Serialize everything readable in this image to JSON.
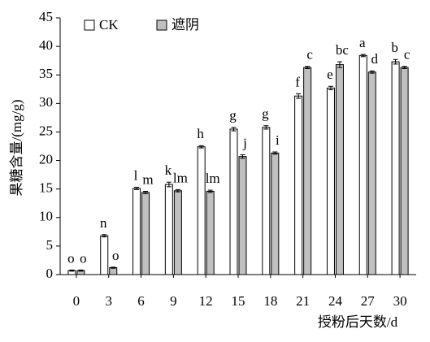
{
  "chart_data": {
    "type": "bar",
    "x_label": "授粉后天数/d",
    "y_label": "果糖含量/(mg/g)",
    "categories": [
      "0",
      "3",
      "6",
      "9",
      "12",
      "15",
      "18",
      "21",
      "24",
      "27",
      "30"
    ],
    "series": [
      {
        "name": "CK",
        "color": "#ffffff",
        "values": [
          0.7,
          6.8,
          15.1,
          15.8,
          22.4,
          25.5,
          25.8,
          31.3,
          32.7,
          38.4,
          37.3
        ],
        "errors": [
          0.1,
          0.2,
          0.2,
          0.4,
          0.2,
          0.3,
          0.3,
          0.4,
          0.3,
          0.2,
          0.4
        ],
        "letters": [
          "o",
          "n",
          "l",
          "k",
          "h",
          "g",
          "g",
          "f",
          "e",
          "a",
          "b"
        ]
      },
      {
        "name": "遮阴",
        "color": "#c0c0c0",
        "values": [
          0.7,
          1.2,
          14.4,
          14.7,
          14.6,
          20.7,
          21.3,
          36.3,
          36.8,
          35.5,
          36.3
        ],
        "errors": [
          0.1,
          0.1,
          0.2,
          0.2,
          0.2,
          0.3,
          0.2,
          0.2,
          0.5,
          0.2,
          0.2
        ],
        "letters": [
          "o",
          "o",
          "m",
          "lm",
          "lm",
          "j",
          "i",
          "c",
          "bc",
          "d",
          "c"
        ]
      }
    ],
    "ylim": [
      0,
      45
    ],
    "yticks": [
      0,
      5,
      10,
      15,
      20,
      25,
      30,
      35,
      40,
      45
    ]
  }
}
